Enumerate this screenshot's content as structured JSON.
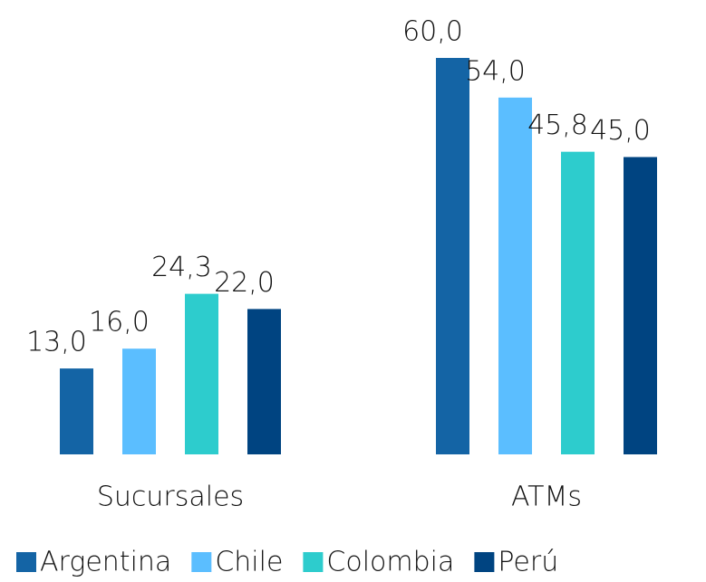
{
  "chart_data": {
    "type": "bar",
    "categories": [
      "Sucursales",
      "ATMs"
    ],
    "series": [
      {
        "name": "Argentina",
        "color": "#1464a5",
        "values": [
          13.0,
          60.0
        ],
        "value_labels": [
          "13,0",
          "60,0"
        ]
      },
      {
        "name": "Chile",
        "color": "#5bbeff",
        "values": [
          16.0,
          54.0
        ],
        "value_labels": [
          "16,0",
          "54,0"
        ]
      },
      {
        "name": "Colombia",
        "color": "#2dcccd",
        "values": [
          24.3,
          45.8
        ],
        "value_labels": [
          "24,3",
          "45,8"
        ]
      },
      {
        "name": "Perú",
        "color": "#004481",
        "values": [
          22.0,
          45.0
        ],
        "value_labels": [
          "22,0",
          "45,0"
        ]
      }
    ]
  }
}
